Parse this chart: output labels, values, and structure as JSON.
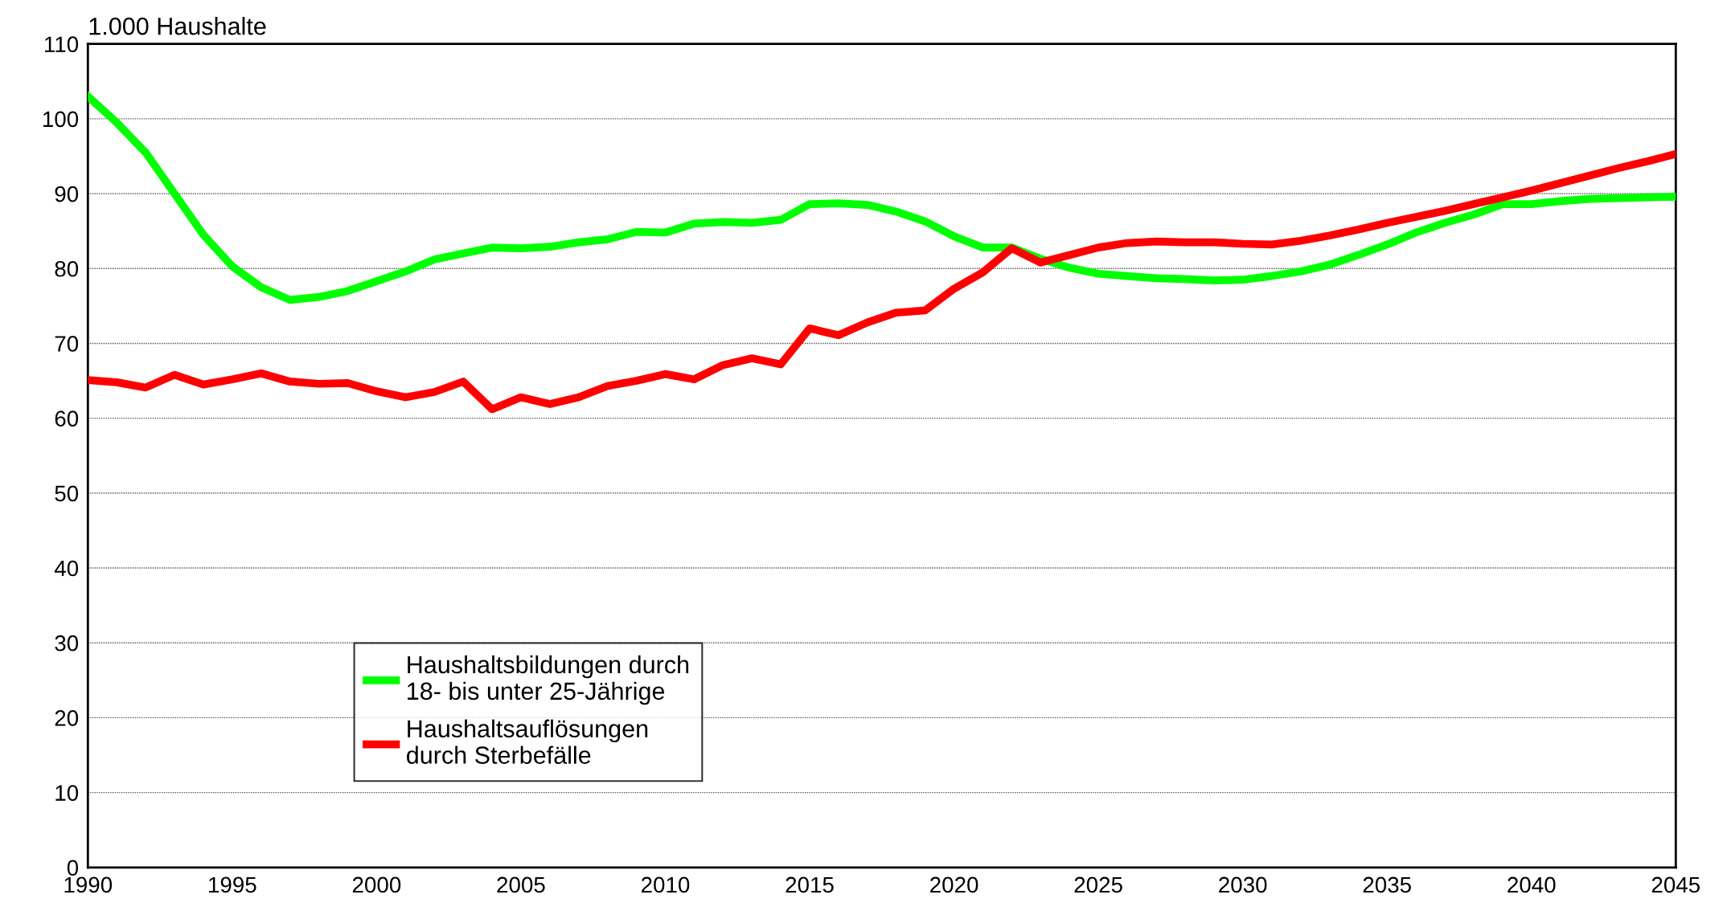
{
  "chart_data": {
    "type": "line",
    "ylabel": "1.000 Haushalte",
    "x": [
      1990,
      1991,
      1992,
      1993,
      1994,
      1995,
      1996,
      1997,
      1998,
      1999,
      2000,
      2001,
      2002,
      2003,
      2004,
      2005,
      2006,
      2007,
      2008,
      2009,
      2010,
      2011,
      2012,
      2013,
      2014,
      2015,
      2016,
      2017,
      2018,
      2019,
      2020,
      2021,
      2022,
      2023,
      2024,
      2025,
      2026,
      2027,
      2028,
      2029,
      2030,
      2031,
      2032,
      2033,
      2034,
      2035,
      2036,
      2037,
      2038,
      2039,
      2040,
      2041,
      2042,
      2043,
      2044,
      2045
    ],
    "series": [
      {
        "name": "Haushaltsbildungen durch\n18- bis unter 25-Jährige",
        "color": "#00ff00",
        "values": [
          103,
          99.5,
          95.5,
          90,
          84.5,
          80.3,
          77.5,
          75.8,
          76.2,
          77,
          78.3,
          79.6,
          81.2,
          82,
          82.8,
          82.7,
          82.9,
          83.5,
          83.9,
          84.9,
          84.8,
          86,
          86.2,
          86.1,
          86.5,
          88.6,
          88.7,
          88.5,
          87.6,
          86.3,
          84.3,
          82.8,
          82.8,
          81.3,
          80.1,
          79.3,
          79,
          78.7,
          78.6,
          78.4,
          78.5,
          79,
          79.6,
          80.5,
          81.8,
          83.2,
          84.8,
          86.1,
          87.2,
          88.6,
          88.6,
          89,
          89.3,
          89.4,
          89.5,
          89.6
        ]
      },
      {
        "name": "Haushaltsauflösungen\ndurch Sterbefälle",
        "color": "#ff0000",
        "values": [
          65.1,
          64.8,
          64.1,
          65.8,
          64.5,
          65.2,
          66,
          64.9,
          64.6,
          64.7,
          63.6,
          62.8,
          63.5,
          64.9,
          61.2,
          62.8,
          61.9,
          62.8,
          64.3,
          65,
          65.9,
          65.2,
          67.1,
          68,
          67.2,
          72,
          71.1,
          72.8,
          74.1,
          74.4,
          77.3,
          79.5,
          82.7,
          80.8,
          81.8,
          82.8,
          83.4,
          83.6,
          83.5,
          83.5,
          83.3,
          83.2,
          83.7,
          84.4,
          85.2,
          86.1,
          86.9,
          87.7,
          88.6,
          89.5,
          90.4,
          91.4,
          92.4,
          93.4,
          94.3,
          95.3
        ]
      }
    ],
    "xlim": [
      1990,
      2045
    ],
    "xticks": [
      1990,
      1995,
      2000,
      2005,
      2010,
      2015,
      2020,
      2025,
      2030,
      2035,
      2040,
      2045
    ],
    "ylim": [
      0,
      110
    ],
    "yticks": [
      0,
      10,
      20,
      30,
      40,
      50,
      60,
      70,
      80,
      90,
      100,
      110
    ],
    "grid": "y",
    "legend": "bottom",
    "marker": "none",
    "line_style": "solid"
  }
}
